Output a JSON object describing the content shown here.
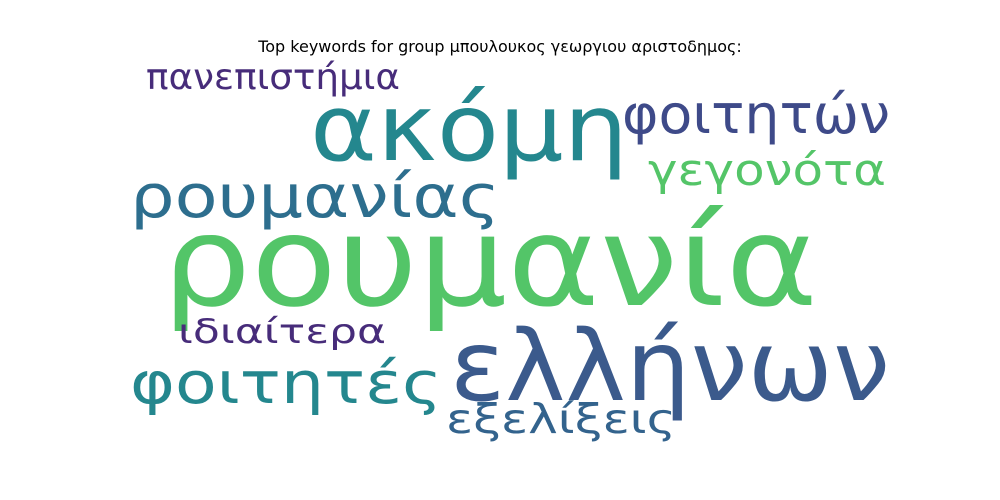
{
  "chart_data": {
    "type": "wordcloud",
    "title": "Top keywords for group μπουλουκος γεωργιου αριστοδημος:",
    "words": [
      {
        "text": "ρουμανία",
        "weight": 100,
        "color": "#53c568"
      },
      {
        "text": "ελλήνων",
        "weight": 78,
        "color": "#3b5a8c"
      },
      {
        "text": "ακόμη",
        "weight": 74,
        "color": "#24878e"
      },
      {
        "text": "ρουμανίας",
        "weight": 48,
        "color": "#2d6e8e"
      },
      {
        "text": "φοιτητές",
        "weight": 46,
        "color": "#24878e"
      },
      {
        "text": "φοιτητών",
        "weight": 43,
        "color": "#3e4a89"
      },
      {
        "text": "γεγονότα",
        "weight": 35,
        "color": "#54c568"
      },
      {
        "text": "εξελίξεις",
        "weight": 33,
        "color": "#33638d"
      },
      {
        "text": "πανεπιστήμια",
        "weight": 29,
        "color": "#472c7a"
      },
      {
        "text": "ιδιαίτερα",
        "weight": 27,
        "color": "#472c7a"
      }
    ]
  }
}
